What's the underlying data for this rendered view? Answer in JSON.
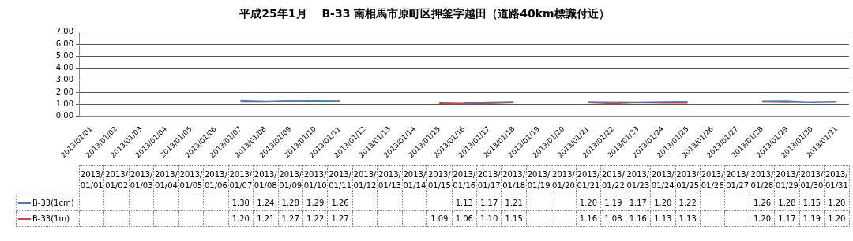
{
  "chart_data": {
    "type": "line",
    "title": "平成25年1月　 B-33 南相馬市原町区押釜字越田（道路40km標識付近）",
    "categories": [
      "2013/01/01",
      "2013/01/02",
      "2013/01/03",
      "2013/01/04",
      "2013/01/05",
      "2013/01/06",
      "2013/01/07",
      "2013/01/08",
      "2013/01/09",
      "2013/01/10",
      "2013/01/11",
      "2013/01/12",
      "2013/01/13",
      "2013/01/14",
      "2013/01/15",
      "2013/01/16",
      "2013/01/17",
      "2013/01/18",
      "2013/01/19",
      "2013/01/20",
      "2013/01/21",
      "2013/01/22",
      "2013/01/23",
      "2013/01/24",
      "2013/01/25",
      "2013/01/26",
      "2013/01/27",
      "2013/01/28",
      "2013/01/29",
      "2013/01/30",
      "2013/01/31"
    ],
    "series": [
      {
        "name": "B-33(1cm)",
        "color": "#4a7ebb",
        "values": [
          null,
          null,
          null,
          null,
          null,
          null,
          1.3,
          1.24,
          1.28,
          1.29,
          1.26,
          null,
          null,
          null,
          null,
          1.13,
          1.17,
          1.21,
          null,
          null,
          1.2,
          1.19,
          1.17,
          1.2,
          1.22,
          null,
          null,
          1.26,
          1.28,
          1.15,
          1.2
        ],
        "value_labels": [
          null,
          null,
          null,
          null,
          null,
          null,
          "1.30",
          "1.24",
          "1.28",
          "1.29",
          "1.26",
          null,
          null,
          null,
          null,
          "1.13",
          "1.17",
          "1.21",
          null,
          null,
          "1.20",
          "1.19",
          "1.17",
          "1.20",
          "1.22",
          null,
          null,
          "1.26",
          "1.28",
          "1.15",
          "1.20"
        ]
      },
      {
        "name": "B-33(1m)",
        "color": "#be4b48",
        "values": [
          null,
          null,
          null,
          null,
          null,
          null,
          1.2,
          1.21,
          1.27,
          1.22,
          1.27,
          null,
          null,
          null,
          1.09,
          1.06,
          1.1,
          1.15,
          null,
          null,
          1.16,
          1.08,
          1.16,
          1.13,
          1.13,
          null,
          null,
          1.2,
          1.17,
          1.19,
          1.2
        ],
        "value_labels": [
          null,
          null,
          null,
          null,
          null,
          null,
          "1.20",
          "1.21",
          "1.27",
          "1.22",
          "1.27",
          null,
          null,
          null,
          "1.09",
          "1.06",
          "1.10",
          "1.15",
          null,
          null,
          "1.16",
          "1.08",
          "1.16",
          "1.13",
          "1.13",
          null,
          null,
          "1.20",
          "1.17",
          "1.19",
          "1.20"
        ]
      }
    ],
    "ylim": [
      0,
      7
    ],
    "yticks": [
      {
        "value": 0,
        "label": "0.00"
      },
      {
        "value": 1,
        "label": "1.00"
      },
      {
        "value": 2,
        "label": "2.00"
      },
      {
        "value": 3,
        "label": "3.00"
      },
      {
        "value": 4,
        "label": "4.00"
      },
      {
        "value": 5,
        "label": "5.00"
      },
      {
        "value": 6,
        "label": "6.00"
      },
      {
        "value": 7,
        "label": "7.00"
      }
    ],
    "grid": "y",
    "legend": "bottom",
    "marker": "none",
    "line_style": "solid"
  }
}
